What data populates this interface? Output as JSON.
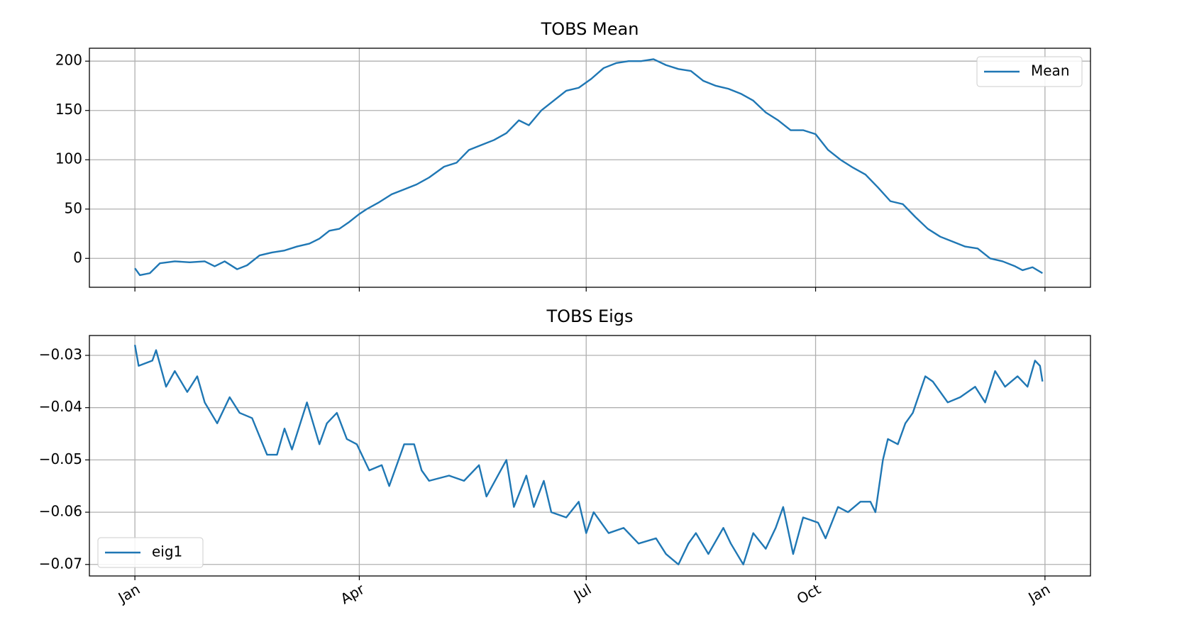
{
  "chart_data": [
    {
      "type": "line",
      "title": "TOBS Mean",
      "x": [
        0,
        2,
        6,
        10,
        16,
        22,
        28,
        32,
        36,
        41,
        45,
        50,
        55,
        60,
        65,
        70,
        74,
        78,
        82,
        86,
        90,
        93,
        98,
        103,
        108,
        113,
        118,
        124,
        129,
        134,
        139,
        144,
        149,
        154,
        158,
        163,
        168,
        173,
        178,
        183,
        188,
        193,
        198,
        203,
        208,
        213,
        218,
        223,
        228,
        233,
        238,
        243,
        248,
        253,
        258,
        263,
        268,
        273,
        278,
        283,
        288,
        293,
        298,
        303,
        308,
        313,
        318,
        323,
        328,
        333,
        338,
        343,
        348,
        353,
        356,
        360,
        364
      ],
      "series": [
        {
          "name": "Mean",
          "color": "#1f77b4",
          "values": [
            -10,
            -17,
            -15,
            -5,
            -3,
            -4,
            -3,
            -8,
            -3,
            -11,
            -7,
            3,
            6,
            8,
            12,
            15,
            20,
            28,
            30,
            37,
            45,
            50,
            57,
            65,
            70,
            75,
            82,
            93,
            97,
            110,
            115,
            120,
            127,
            140,
            135,
            150,
            160,
            170,
            173,
            182,
            193,
            198,
            200,
            200,
            202,
            196,
            192,
            190,
            180,
            175,
            172,
            167,
            160,
            148,
            140,
            130,
            130,
            126,
            110,
            100,
            92,
            85,
            72,
            58,
            55,
            42,
            30,
            22,
            17,
            12,
            10,
            0,
            -3,
            -8,
            -12,
            -9,
            -15
          ]
        }
      ],
      "xlim": [
        -18.25,
        383.25
      ],
      "xticks": [
        0,
        90,
        181,
        273,
        365
      ],
      "ylim": [
        -29.3,
        213.1
      ],
      "yticks": [
        0,
        50,
        100,
        150,
        200
      ],
      "grid": true,
      "legend": "upper right"
    },
    {
      "type": "line",
      "title": "TOBS Eigs",
      "x": [
        0,
        1.5,
        7,
        8.5,
        12.5,
        16,
        21,
        25,
        28,
        33,
        38,
        42,
        47,
        53,
        57,
        60,
        63,
        69,
        74,
        77,
        81,
        85,
        89,
        94,
        99,
        102,
        108,
        112,
        115,
        118,
        126,
        132,
        138,
        141,
        149,
        152,
        157,
        160,
        164,
        167,
        173,
        178,
        181,
        184,
        190,
        196,
        202,
        209,
        213,
        218,
        222,
        225,
        230,
        236,
        239,
        244,
        248,
        253,
        257,
        260,
        264,
        268,
        274,
        277,
        282,
        286,
        291,
        295,
        297,
        300,
        302,
        306,
        309,
        312,
        317,
        320,
        326,
        331,
        337,
        341,
        345,
        349,
        354,
        358,
        361,
        363,
        364
      ],
      "series": [
        {
          "name": "eig1",
          "color": "#1f77b4",
          "values": [
            -0.028,
            -0.032,
            -0.031,
            -0.029,
            -0.036,
            -0.033,
            -0.037,
            -0.034,
            -0.039,
            -0.043,
            -0.038,
            -0.041,
            -0.042,
            -0.049,
            -0.049,
            -0.044,
            -0.048,
            -0.039,
            -0.047,
            -0.043,
            -0.041,
            -0.046,
            -0.047,
            -0.052,
            -0.051,
            -0.055,
            -0.047,
            -0.047,
            -0.052,
            -0.054,
            -0.053,
            -0.054,
            -0.051,
            -0.057,
            -0.05,
            -0.059,
            -0.053,
            -0.059,
            -0.054,
            -0.06,
            -0.061,
            -0.058,
            -0.064,
            -0.06,
            -0.064,
            -0.063,
            -0.066,
            -0.065,
            -0.068,
            -0.07,
            -0.066,
            -0.064,
            -0.068,
            -0.063,
            -0.066,
            -0.07,
            -0.064,
            -0.067,
            -0.063,
            -0.059,
            -0.068,
            -0.061,
            -0.062,
            -0.065,
            -0.059,
            -0.06,
            -0.058,
            -0.058,
            -0.06,
            -0.05,
            -0.046,
            -0.047,
            -0.043,
            -0.041,
            -0.034,
            -0.035,
            -0.039,
            -0.038,
            -0.036,
            -0.039,
            -0.033,
            -0.036,
            -0.034,
            -0.036,
            -0.031,
            -0.032,
            -0.035
          ]
        }
      ],
      "xlim": [
        -18.25,
        383.25
      ],
      "xticks": [
        {
          "value": 0,
          "label": "Jan"
        },
        {
          "value": 90,
          "label": "Apr"
        },
        {
          "value": 181,
          "label": "Jul"
        },
        {
          "value": 273,
          "label": "Oct"
        },
        {
          "value": 365,
          "label": "Jan"
        }
      ],
      "ylim": [
        -0.0722,
        -0.0262
      ],
      "yticks": [
        {
          "value": -0.07,
          "label": "−0.07"
        },
        {
          "value": -0.06,
          "label": "−0.06"
        },
        {
          "value": -0.05,
          "label": "−0.05"
        },
        {
          "value": -0.04,
          "label": "−0.04"
        },
        {
          "value": -0.03,
          "label": "−0.03"
        }
      ],
      "grid": true,
      "legend": "lower left"
    }
  ]
}
